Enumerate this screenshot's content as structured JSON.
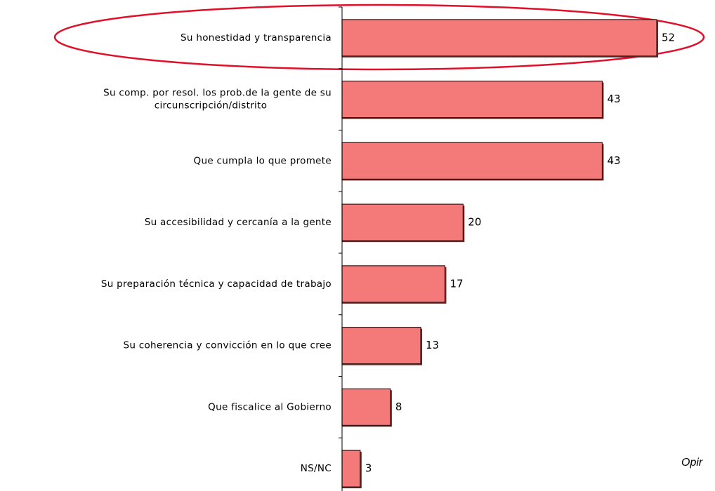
{
  "chart_data": {
    "type": "bar",
    "orientation": "horizontal",
    "categories": [
      "Su honestidad y transparencia",
      "Su comp. por resol. los prob.de la gente de su\ncircunscripción/distrito",
      "Que cumpla lo que promete",
      "Su accesibilidad y cercanía a la gente",
      "Su preparación técnica y capacidad de trabajo",
      "Su coherencia y convicción en lo que cree",
      "Que fiscalice al Gobierno",
      "NS/NC"
    ],
    "values": [
      52,
      43,
      43,
      20,
      17,
      13,
      8,
      3
    ],
    "color": "#f47a7a",
    "annotation": "Opir"
  }
}
